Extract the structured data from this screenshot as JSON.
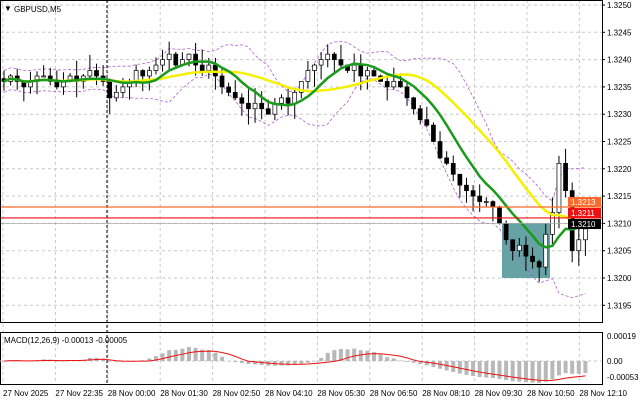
{
  "symbol_label": "GBPUSD,M5",
  "chart_data": {
    "type": "candlestick",
    "symbol": "GBPUSD,M5",
    "ylim": [
      1.31925,
      1.32505
    ],
    "y_ticks": [
      "1.3250",
      "1.3245",
      "1.3240",
      "1.3235",
      "1.3230",
      "1.3225",
      "1.3220",
      "1.3215",
      "1.3210",
      "1.3205",
      "1.3200",
      "1.3195"
    ],
    "x_ticks": [
      "27 Nov 2025",
      "27 Nov 22:35",
      "28 Nov 00:00",
      "28 Nov 01:30",
      "28 Nov 02:50",
      "28 Nov 04:10",
      "28 Nov 05:30",
      "28 Nov 06:50",
      "28 Nov 08:10",
      "28 Nov 09:30",
      "28 Nov 10:50",
      "28 Nov 12:10"
    ],
    "closes": [
      1.3236,
      1.3237,
      1.3236,
      1.3235,
      1.3236,
      1.3237,
      1.3237,
      1.3236,
      1.3235,
      1.3236,
      1.3237,
      1.3236,
      1.3237,
      1.3238,
      1.3237,
      1.3236,
      1.3233,
      1.3234,
      1.3235,
      1.3236,
      1.3238,
      1.3237,
      1.3238,
      1.3239,
      1.324,
      1.3241,
      1.3239,
      1.324,
      1.3241,
      1.3239,
      1.3238,
      1.3239,
      1.3237,
      1.3235,
      1.3234,
      1.3233,
      1.3232,
      1.3231,
      1.3232,
      1.3231,
      1.323,
      1.3232,
      1.3233,
      1.3232,
      1.3234,
      1.3236,
      1.3238,
      1.3239,
      1.324,
      1.3241,
      1.324,
      1.3239,
      1.3238,
      1.3239,
      1.3237,
      1.3238,
      1.3237,
      1.3236,
      1.3235,
      1.3236,
      1.3235,
      1.3233,
      1.3231,
      1.3229,
      1.3228,
      1.3225,
      1.3222,
      1.3221,
      1.3219,
      1.3217,
      1.3216,
      1.3215,
      1.3214,
      1.3214,
      1.3213,
      1.321,
      1.3207,
      1.3205,
      1.3206,
      1.3204,
      1.3203,
      1.3202,
      1.3208,
      1.3212,
      1.3221,
      1.3216,
      1.3205,
      1.3207,
      1.3209
    ],
    "levels": [
      {
        "price": 1.3213,
        "label": "1.3213",
        "color": "#ff6a2a"
      },
      {
        "price": 1.3211,
        "label": "1.3211",
        "color": "#ee1111"
      },
      {
        "price": 1.321,
        "label": "1.3210",
        "color": "#000000"
      }
    ],
    "zone": {
      "from_price": 1.32,
      "to_price": 1.321,
      "color": "#5f9ea0"
    },
    "ma_colors": {
      "fast": "#1a9a1a",
      "slow": "#f5f000",
      "bands": "#b060d0"
    },
    "macd": {
      "label": "MACD(12,26,9) -0.00013 -0.00005",
      "y_ticks": [
        "0.00019",
        "0.00",
        "-0.00053"
      ],
      "histogram_color": "#b8b8b8",
      "signal_color": "#ee1111"
    }
  }
}
